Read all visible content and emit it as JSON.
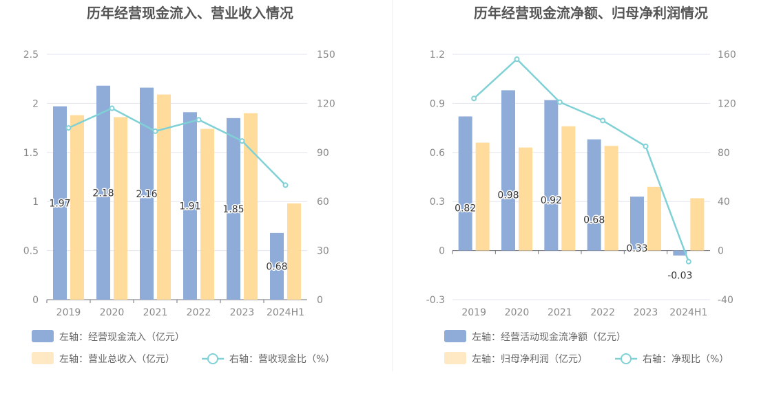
{
  "chart_data": [
    {
      "type": "bar",
      "title": "历年经营现金流入、营业收入情况",
      "categories": [
        "2019",
        "2020",
        "2021",
        "2022",
        "2023",
        "2024H1"
      ],
      "left_axis": {
        "ticks": [
          "0",
          "0.5",
          "1",
          "1.5",
          "2",
          "2.5"
        ],
        "ylim": [
          0,
          2.5
        ]
      },
      "right_axis": {
        "ticks": [
          "0",
          "30",
          "60",
          "90",
          "120",
          "150"
        ],
        "ylim": [
          0,
          150
        ]
      },
      "series": [
        {
          "name": "左轴：经营现金流入（亿元）",
          "kind": "bar",
          "axis": "left",
          "color": "#8facd9",
          "values": [
            1.97,
            2.18,
            2.16,
            1.91,
            1.85,
            0.68
          ],
          "labels": [
            "1.97",
            "2.18",
            "2.16",
            "1.91",
            "1.85",
            "0.68"
          ]
        },
        {
          "name": "左轴：营业总收入（亿元）",
          "kind": "bar",
          "axis": "left",
          "color": "#ffdb9c",
          "values": [
            1.88,
            1.86,
            2.09,
            1.74,
            1.9,
            0.98
          ]
        },
        {
          "name": "右轴：营收现金比（%）",
          "kind": "line",
          "axis": "right",
          "color": "#7fd1d6",
          "values": [
            105,
            117,
            103,
            110,
            97,
            70
          ]
        }
      ]
    },
    {
      "type": "bar",
      "title": "历年经营现金流净额、归母净利润情况",
      "categories": [
        "2019",
        "2020",
        "2021",
        "2022",
        "2023",
        "2024H1"
      ],
      "left_axis": {
        "ticks": [
          "-0.3",
          "0",
          "0.3",
          "0.6",
          "0.9",
          "1.2"
        ],
        "ylim": [
          -0.3,
          1.2
        ]
      },
      "right_axis": {
        "ticks": [
          "-40",
          "0",
          "40",
          "80",
          "120",
          "160"
        ],
        "ylim": [
          -40,
          160
        ]
      },
      "series": [
        {
          "name": "左轴：经营活动现金流净额（亿元）",
          "kind": "bar",
          "axis": "left",
          "color": "#8facd9",
          "values": [
            0.82,
            0.98,
            0.92,
            0.68,
            0.33,
            -0.03
          ],
          "labels": [
            "0.82",
            "0.98",
            "0.92",
            "0.68",
            "0.33",
            "-0.03"
          ]
        },
        {
          "name": "左轴：归母净利润（亿元）",
          "kind": "bar",
          "axis": "left",
          "color": "#ffdb9c",
          "values": [
            0.66,
            0.63,
            0.76,
            0.64,
            0.39,
            0.32
          ]
        },
        {
          "name": "右轴：净现比（%）",
          "kind": "line",
          "axis": "right",
          "color": "#7fd1d6",
          "values": [
            124,
            156,
            121,
            106,
            85,
            -9
          ]
        }
      ]
    }
  ]
}
